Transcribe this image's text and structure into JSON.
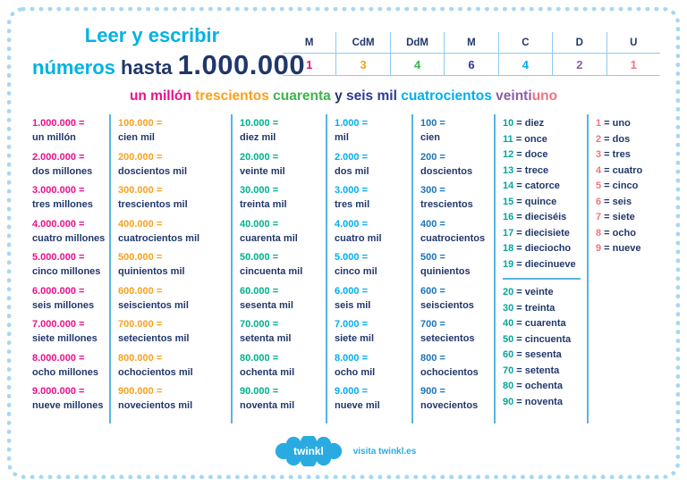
{
  "page": {
    "background": "#ffffff",
    "border_color": "#a5d8f2"
  },
  "header": {
    "title_line1": "Leer y escribir",
    "title_word_numeros": "números",
    "title_word_hasta": "hasta",
    "title_number": "1.000.000"
  },
  "place_value_table": {
    "columns": [
      {
        "header": "M",
        "value": "1",
        "color": "#ec0e8d"
      },
      {
        "header": "CdM",
        "value": "3",
        "color": "#f9a11b"
      },
      {
        "header": "DdM",
        "value": "4",
        "color": "#3db54a"
      },
      {
        "header": "M",
        "value": "6",
        "color": "#2b3a8f"
      },
      {
        "header": "C",
        "value": "4",
        "color": "#00aeef"
      },
      {
        "header": "D",
        "value": "2",
        "color": "#8b5ea7"
      },
      {
        "header": "U",
        "value": "1",
        "color": "#f1737e"
      }
    ]
  },
  "sentence": {
    "segments": [
      {
        "text": "un millón",
        "color": "#ec0e8d"
      },
      {
        "text": " trescientos",
        "color": "#f9a11b"
      },
      {
        "text": " cuarenta",
        "color": "#3db54a"
      },
      {
        "text": " y",
        "color": "#21376b"
      },
      {
        "text": " seis mil",
        "color": "#2b3a8f"
      },
      {
        "text": " cuatrocientos",
        "color": "#00aeef"
      },
      {
        "text": " veinti",
        "color": "#8b5ea7"
      },
      {
        "text": "uno",
        "color": "#f1737e"
      }
    ]
  },
  "number_columns": [
    {
      "name": "millones",
      "number_color": "#ec0e8d",
      "two_line": true,
      "groups": [
        [
          [
            "1.000.000",
            "un millón"
          ],
          [
            "2.000.000",
            "dos millones"
          ],
          [
            "3.000.000",
            "tres millones"
          ],
          [
            "4.000.000",
            "cuatro millones"
          ],
          [
            "5.000.000",
            "cinco millones"
          ],
          [
            "6.000.000",
            "seis millones"
          ],
          [
            "7.000.000",
            "siete millones"
          ],
          [
            "8.000.000",
            "ocho millones"
          ],
          [
            "9.000.000",
            "nueve millones"
          ]
        ]
      ]
    },
    {
      "name": "centenas-de-millar",
      "number_color": "#f9a11b",
      "two_line": true,
      "groups": [
        [
          [
            "100.000",
            "cien mil"
          ],
          [
            "200.000",
            "doscientos mil"
          ],
          [
            "300.000",
            "trescientos mil"
          ],
          [
            "400.000",
            "cuatrocientos mil"
          ],
          [
            "500.000",
            "quinientos mil"
          ],
          [
            "600.000",
            "seiscientos mil"
          ],
          [
            "700.000",
            "setecientos mil"
          ],
          [
            "800.000",
            "ochocientos mil"
          ],
          [
            "900.000",
            "novecientos mil"
          ]
        ]
      ]
    },
    {
      "name": "decenas-de-millar",
      "number_color": "#00b08d",
      "two_line": true,
      "groups": [
        [
          [
            "10.000",
            "diez mil"
          ],
          [
            "20.000",
            "veinte mil"
          ],
          [
            "30.000",
            "treinta mil"
          ],
          [
            "40.000",
            "cuarenta mil"
          ],
          [
            "50.000",
            "cincuenta mil"
          ],
          [
            "60.000",
            "sesenta mil"
          ],
          [
            "70.000",
            "setenta mil"
          ],
          [
            "80.000",
            "ochenta mil"
          ],
          [
            "90.000",
            "noventa mil"
          ]
        ]
      ]
    },
    {
      "name": "millares",
      "number_color": "#00aeef",
      "two_line": true,
      "groups": [
        [
          [
            "1.000",
            "mil"
          ],
          [
            "2.000",
            "dos mil"
          ],
          [
            "3.000",
            "tres mil"
          ],
          [
            "4.000",
            "cuatro mil"
          ],
          [
            "5.000",
            "cinco mil"
          ],
          [
            "6.000",
            "seis mil"
          ],
          [
            "7.000",
            "siete mil"
          ],
          [
            "8.000",
            "ocho mil"
          ],
          [
            "9.000",
            "nueve mil"
          ]
        ]
      ]
    },
    {
      "name": "centenas",
      "number_color": "#1b75bb",
      "two_line": true,
      "groups": [
        [
          [
            "100",
            "cien"
          ],
          [
            "200",
            "doscientos"
          ],
          [
            "300",
            "trescientos"
          ],
          [
            "400",
            "cuatrocientos"
          ],
          [
            "500",
            "quinientos"
          ],
          [
            "600",
            "seiscientos"
          ],
          [
            "700",
            "setecientos"
          ],
          [
            "800",
            "ochocientos"
          ],
          [
            "900",
            "novecientos"
          ]
        ]
      ]
    },
    {
      "name": "decenas",
      "number_color": "#00a79d",
      "two_line": false,
      "groups": [
        [
          [
            "10",
            "diez"
          ],
          [
            "11",
            "once"
          ],
          [
            "12",
            "doce"
          ],
          [
            "13",
            "trece"
          ],
          [
            "14",
            "catorce"
          ],
          [
            "15",
            "quince"
          ],
          [
            "16",
            "dieciséis"
          ],
          [
            "17",
            "diecisiete"
          ],
          [
            "18",
            "dieciocho"
          ],
          [
            "19",
            "diecinueve"
          ]
        ],
        [
          [
            "20",
            "veinte"
          ],
          [
            "30",
            "treinta"
          ],
          [
            "40",
            "cuarenta"
          ],
          [
            "50",
            "cincuenta"
          ],
          [
            "60",
            "sesenta"
          ],
          [
            "70",
            "setenta"
          ],
          [
            "80",
            "ochenta"
          ],
          [
            "90",
            "noventa"
          ]
        ]
      ]
    },
    {
      "name": "unidades",
      "number_color": "#f1737e",
      "two_line": false,
      "groups": [
        [
          [
            "1",
            "uno"
          ],
          [
            "2",
            "dos"
          ],
          [
            "3",
            "tres"
          ],
          [
            "4",
            "cuatro"
          ],
          [
            "5",
            "cinco"
          ],
          [
            "6",
            "seis"
          ],
          [
            "7",
            "siete"
          ],
          [
            "8",
            "ocho"
          ],
          [
            "9",
            "nueve"
          ]
        ]
      ]
    }
  ],
  "footer": {
    "logo_text": "twinkl",
    "visit_text": "visita twinkl.es",
    "logo_color": "#29abe2"
  }
}
